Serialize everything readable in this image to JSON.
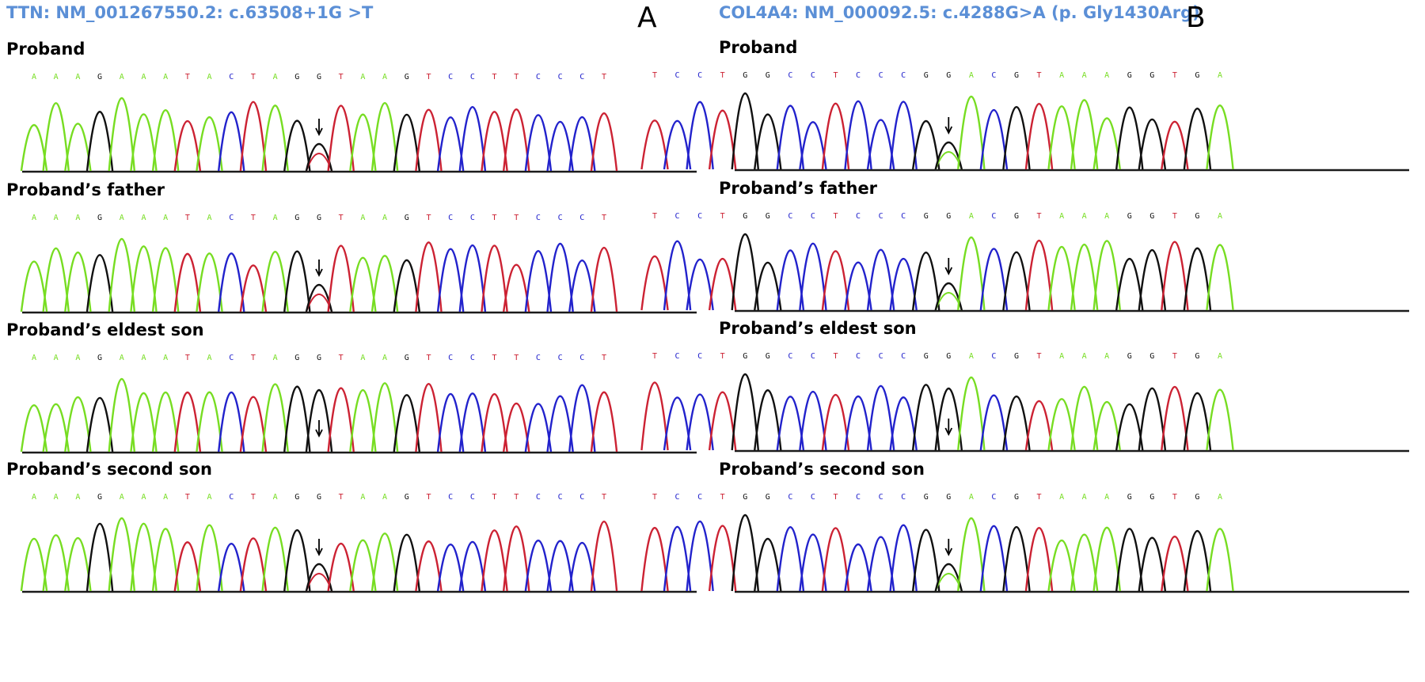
{
  "colors": {
    "A": "#77dd22",
    "C": "#2222cc",
    "G": "#111111",
    "T": "#cc2233",
    "title": "#5b8fd6",
    "arrow": "#000000"
  },
  "panels": [
    {
      "letter": "A",
      "title": "TTN: NM_001267550.2: c.63508+1G >T",
      "sequence": [
        "A",
        "A",
        "A",
        "G",
        "A",
        "A",
        "A",
        "T",
        "A",
        "C",
        "T",
        "A",
        "G",
        "G",
        "T",
        "A",
        "A",
        "G",
        "T",
        "C",
        "C",
        "T",
        "T",
        "C",
        "C",
        "C",
        "T"
      ],
      "samples": [
        {
          "label": "Proband",
          "variant": "heterozygous"
        },
        {
          "label": "Proband’s father",
          "variant": "heterozygous"
        },
        {
          "label": "Proband’s eldest son",
          "variant": "wild-type"
        },
        {
          "label": "Proband’s second son",
          "variant": "heterozygous"
        }
      ]
    },
    {
      "letter": "B",
      "title": "COL4A4: NM_000092.5: c.4288G>A (p. Gly1430Arg)",
      "sequence": [
        "T",
        "C",
        "C",
        "T",
        "G",
        "G",
        "C",
        "C",
        "T",
        "C",
        "C",
        "C",
        "G",
        "G",
        "A",
        "C",
        "G",
        "T",
        "A",
        "A",
        "A",
        "G",
        "G",
        "T",
        "G",
        "A"
      ],
      "samples": [
        {
          "label": "Proband",
          "variant": "heterozygous"
        },
        {
          "label": "Proband’s father",
          "variant": "heterozygous"
        },
        {
          "label": "Proband’s eldest son",
          "variant": "wild-type"
        },
        {
          "label": "Proband’s second son",
          "variant": "heterozygous"
        }
      ]
    }
  ]
}
